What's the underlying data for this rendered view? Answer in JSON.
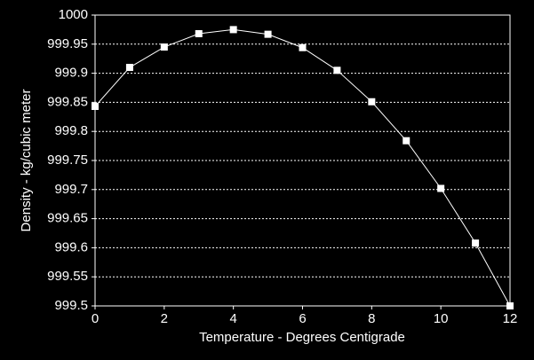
{
  "chart_data": {
    "type": "line",
    "xlabel": "Temperature - Degrees Centigrade",
    "ylabel": "Density - kg/cubic meter",
    "x": [
      0,
      1,
      2,
      3,
      4,
      5,
      6,
      7,
      8,
      9,
      10,
      11,
      12
    ],
    "series": [
      {
        "color": "#ffffff",
        "values": [
          999.843,
          999.91,
          999.945,
          999.968,
          999.975,
          999.967,
          999.944,
          999.905,
          999.851,
          999.784,
          999.702,
          999.608,
          999.5
        ]
      }
    ],
    "xlim": [
      0,
      12
    ],
    "xticks": [
      0,
      2,
      4,
      6,
      8,
      10,
      12
    ],
    "ylim": [
      999.5,
      1000
    ],
    "yticks": [
      999.5,
      999.55,
      999.6,
      999.65,
      999.7,
      999.75,
      999.8,
      999.85,
      999.9,
      999.95,
      1000
    ],
    "grid": true
  }
}
